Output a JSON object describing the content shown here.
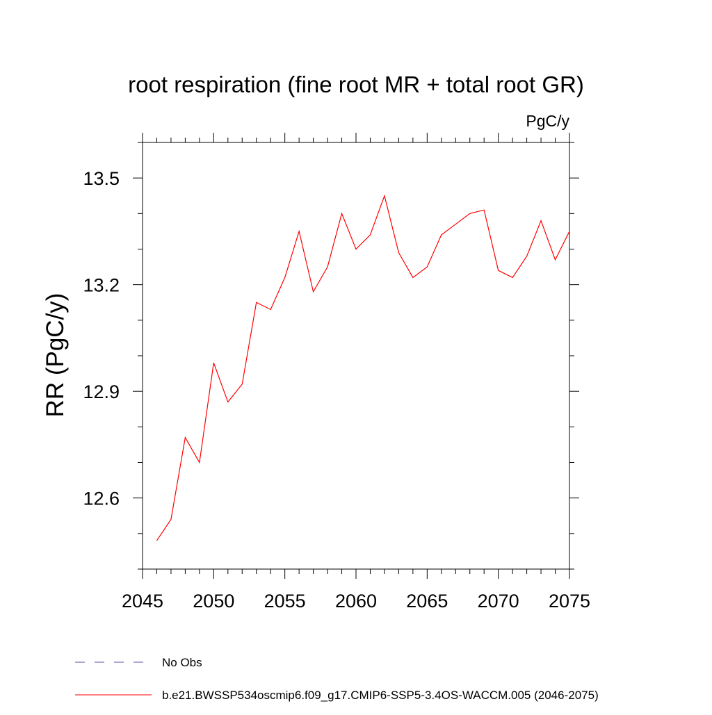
{
  "chart_data": {
    "type": "line",
    "title": "root respiration (fine root MR + total root GR)",
    "units_label": "PgC/y",
    "ylabel": "RR  (PgC/y)",
    "xlabel": "",
    "xlim": [
      2045,
      2075
    ],
    "ylim": [
      12.4,
      13.6
    ],
    "x_ticks": [
      2045,
      2050,
      2055,
      2060,
      2065,
      2070,
      2075
    ],
    "x_tick_labels": [
      "2045",
      "2050",
      "2055",
      "2060",
      "2065",
      "2070",
      "2075"
    ],
    "x_minor_step": 1,
    "y_ticks": [
      12.6,
      12.9,
      13.2,
      13.5
    ],
    "y_tick_labels": [
      "12.6",
      "12.9",
      "13.2",
      "13.5"
    ],
    "y_minor_step": 0.1,
    "grid": false,
    "series": [
      {
        "name": "b.e21.BWSSP534oscmip6.f09_g17.CMIP6-SSP5-3.4OS-WACCM.005 (2046-2075)",
        "color": "#ff0000",
        "x": [
          2046,
          2047,
          2048,
          2049,
          2050,
          2051,
          2052,
          2053,
          2054,
          2055,
          2056,
          2057,
          2058,
          2059,
          2060,
          2061,
          2062,
          2063,
          2064,
          2065,
          2066,
          2067,
          2068,
          2069,
          2070,
          2071,
          2072,
          2073,
          2074,
          2075
        ],
        "values": [
          12.48,
          12.54,
          12.77,
          12.7,
          12.98,
          12.87,
          12.92,
          13.15,
          13.13,
          13.22,
          13.35,
          13.18,
          13.25,
          13.4,
          13.3,
          13.34,
          13.45,
          13.29,
          13.22,
          13.25,
          13.34,
          13.37,
          13.4,
          13.41,
          13.24,
          13.22,
          13.28,
          13.38,
          13.27,
          13.35
        ]
      }
    ],
    "legend": {
      "position": "bottom",
      "entries": [
        {
          "label": "No Obs",
          "color": "#5a4fa8",
          "style": "dashed"
        },
        {
          "label": "b.e21.BWSSP534oscmip6.f09_g17.CMIP6-SSP5-3.4OS-WACCM.005 (2046-2075)",
          "color": "#ff0000",
          "style": "solid"
        }
      ]
    }
  }
}
